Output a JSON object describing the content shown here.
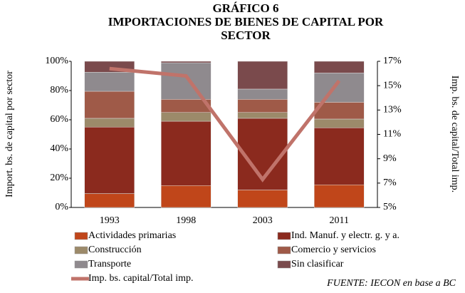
{
  "chart_data": {
    "type": "bar",
    "stacked": true,
    "title": "GRÁFICO 6",
    "subtitle": "IMPORTACIONES DE BIENES DE CAPITAL POR SECTOR",
    "y_label": "Import. bs. de capital por sector",
    "y2_label": "Imp. bs. de capital/Total imp.",
    "source": "FUENTE: IECON en base a BC",
    "categories": [
      "1993",
      "1998",
      "2003",
      "2011"
    ],
    "ylim": [
      0,
      100
    ],
    "yticks": [
      {
        "value": 0,
        "label": "0%"
      },
      {
        "value": 20,
        "label": "20%"
      },
      {
        "value": 40,
        "label": "40%"
      },
      {
        "value": 60,
        "label": "60%"
      },
      {
        "value": 80,
        "label": "80%"
      },
      {
        "value": 100,
        "label": "100%"
      }
    ],
    "y2lim": [
      5,
      17
    ],
    "y2ticks": [
      {
        "value": 5,
        "label": "5%"
      },
      {
        "value": 7,
        "label": "7%"
      },
      {
        "value": 9,
        "label": "9%"
      },
      {
        "value": 11,
        "label": "11%"
      },
      {
        "value": 13,
        "label": "13%"
      },
      {
        "value": 15,
        "label": "15%"
      },
      {
        "value": 17,
        "label": "17%"
      }
    ],
    "series": [
      {
        "name": "Actividades primarias",
        "color": "#c0461a",
        "values": [
          9.5,
          15,
          12,
          15.5
        ]
      },
      {
        "name": "Ind. Manuf. y electr. g. y a.",
        "color": "#8b2a1e",
        "values": [
          45.5,
          44,
          49,
          39
        ]
      },
      {
        "name": "Construcción",
        "color": "#9c8a6a",
        "values": [
          6,
          6,
          4,
          6
        ]
      },
      {
        "name": "Comercio y servicios",
        "color": "#9f5a48",
        "values": [
          18.5,
          9,
          9,
          11.5
        ]
      },
      {
        "name": "Transporte",
        "color": "#8f8a8e",
        "values": [
          13,
          25,
          7,
          20
        ]
      },
      {
        "name": "Sin clasificar",
        "color": "#7a4a4c",
        "values": [
          7.5,
          1,
          19,
          8
        ]
      },
      {
        "name": "Imp. bs. capital/Total imp.",
        "color": "#c0736a",
        "type": "line",
        "axis": "y2",
        "values": [
          16.4,
          15.8,
          7.3,
          15.4
        ]
      }
    ]
  }
}
